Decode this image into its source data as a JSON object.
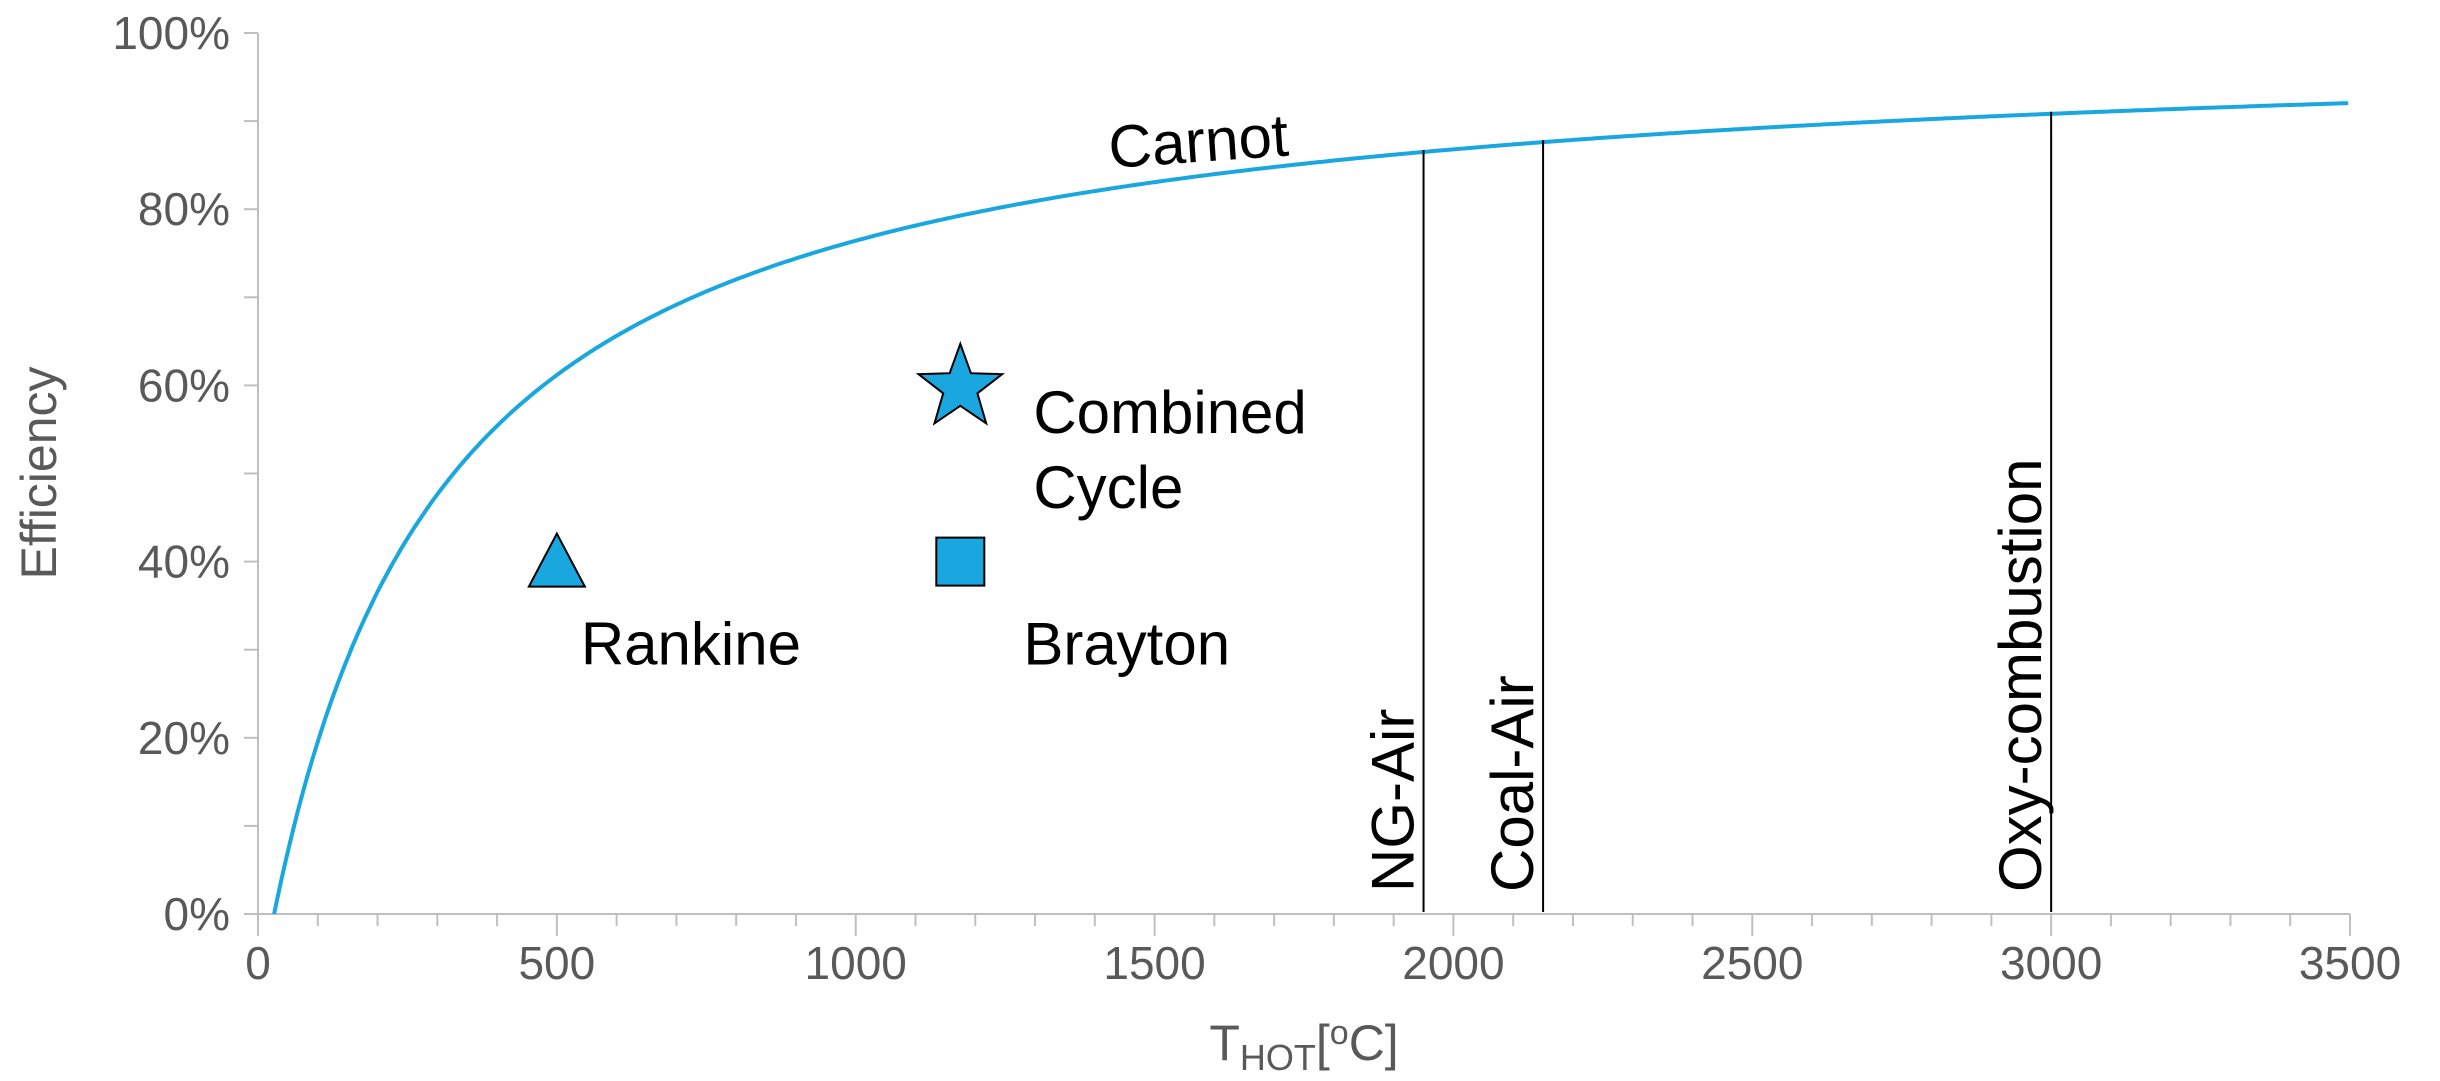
{
  "chart_data": {
    "type": "line",
    "xlabel_main": "T",
    "xlabel_sub": "HOT",
    "xlabel_tail": "[",
    "xlabel_sup": "o",
    "xlabel_end": "C]",
    "ylabel": "Efficiency",
    "xlim": [
      0,
      3500
    ],
    "ylim": [
      0,
      1.0
    ],
    "x_ticks": [
      0,
      500,
      1000,
      1500,
      2000,
      2500,
      3000,
      3500
    ],
    "x_tick_labels": [
      "0",
      "500",
      "1000",
      "1500",
      "2000",
      "2500",
      "3000",
      "3500"
    ],
    "y_ticks": [
      0,
      0.2,
      0.4,
      0.6,
      0.8,
      1.0
    ],
    "y_tick_labels": [
      "0%",
      "20%",
      "40%",
      "60%",
      "80%",
      "100%"
    ],
    "curve": {
      "label": "Carnot",
      "t_cold_c": 27,
      "x_start": 27,
      "x_end": 3500,
      "color": "#1aa7e0"
    },
    "points": [
      {
        "label": "Rankine",
        "x": 500,
        "y": 0.4,
        "marker": "triangle"
      },
      {
        "label": "Brayton",
        "x": 1175,
        "y": 0.4,
        "marker": "square"
      },
      {
        "label_line1": "Combined",
        "label_line2": "Cycle",
        "x": 1175,
        "y": 0.62,
        "marker": "star"
      }
    ],
    "vlines": [
      {
        "label": "NG-Air",
        "x": 1950
      },
      {
        "label": "Coal-Air",
        "x": 2150
      },
      {
        "label": "Oxy-combustion",
        "x": 3000
      }
    ],
    "marker_color": "#1aa7e0",
    "grid": false
  }
}
